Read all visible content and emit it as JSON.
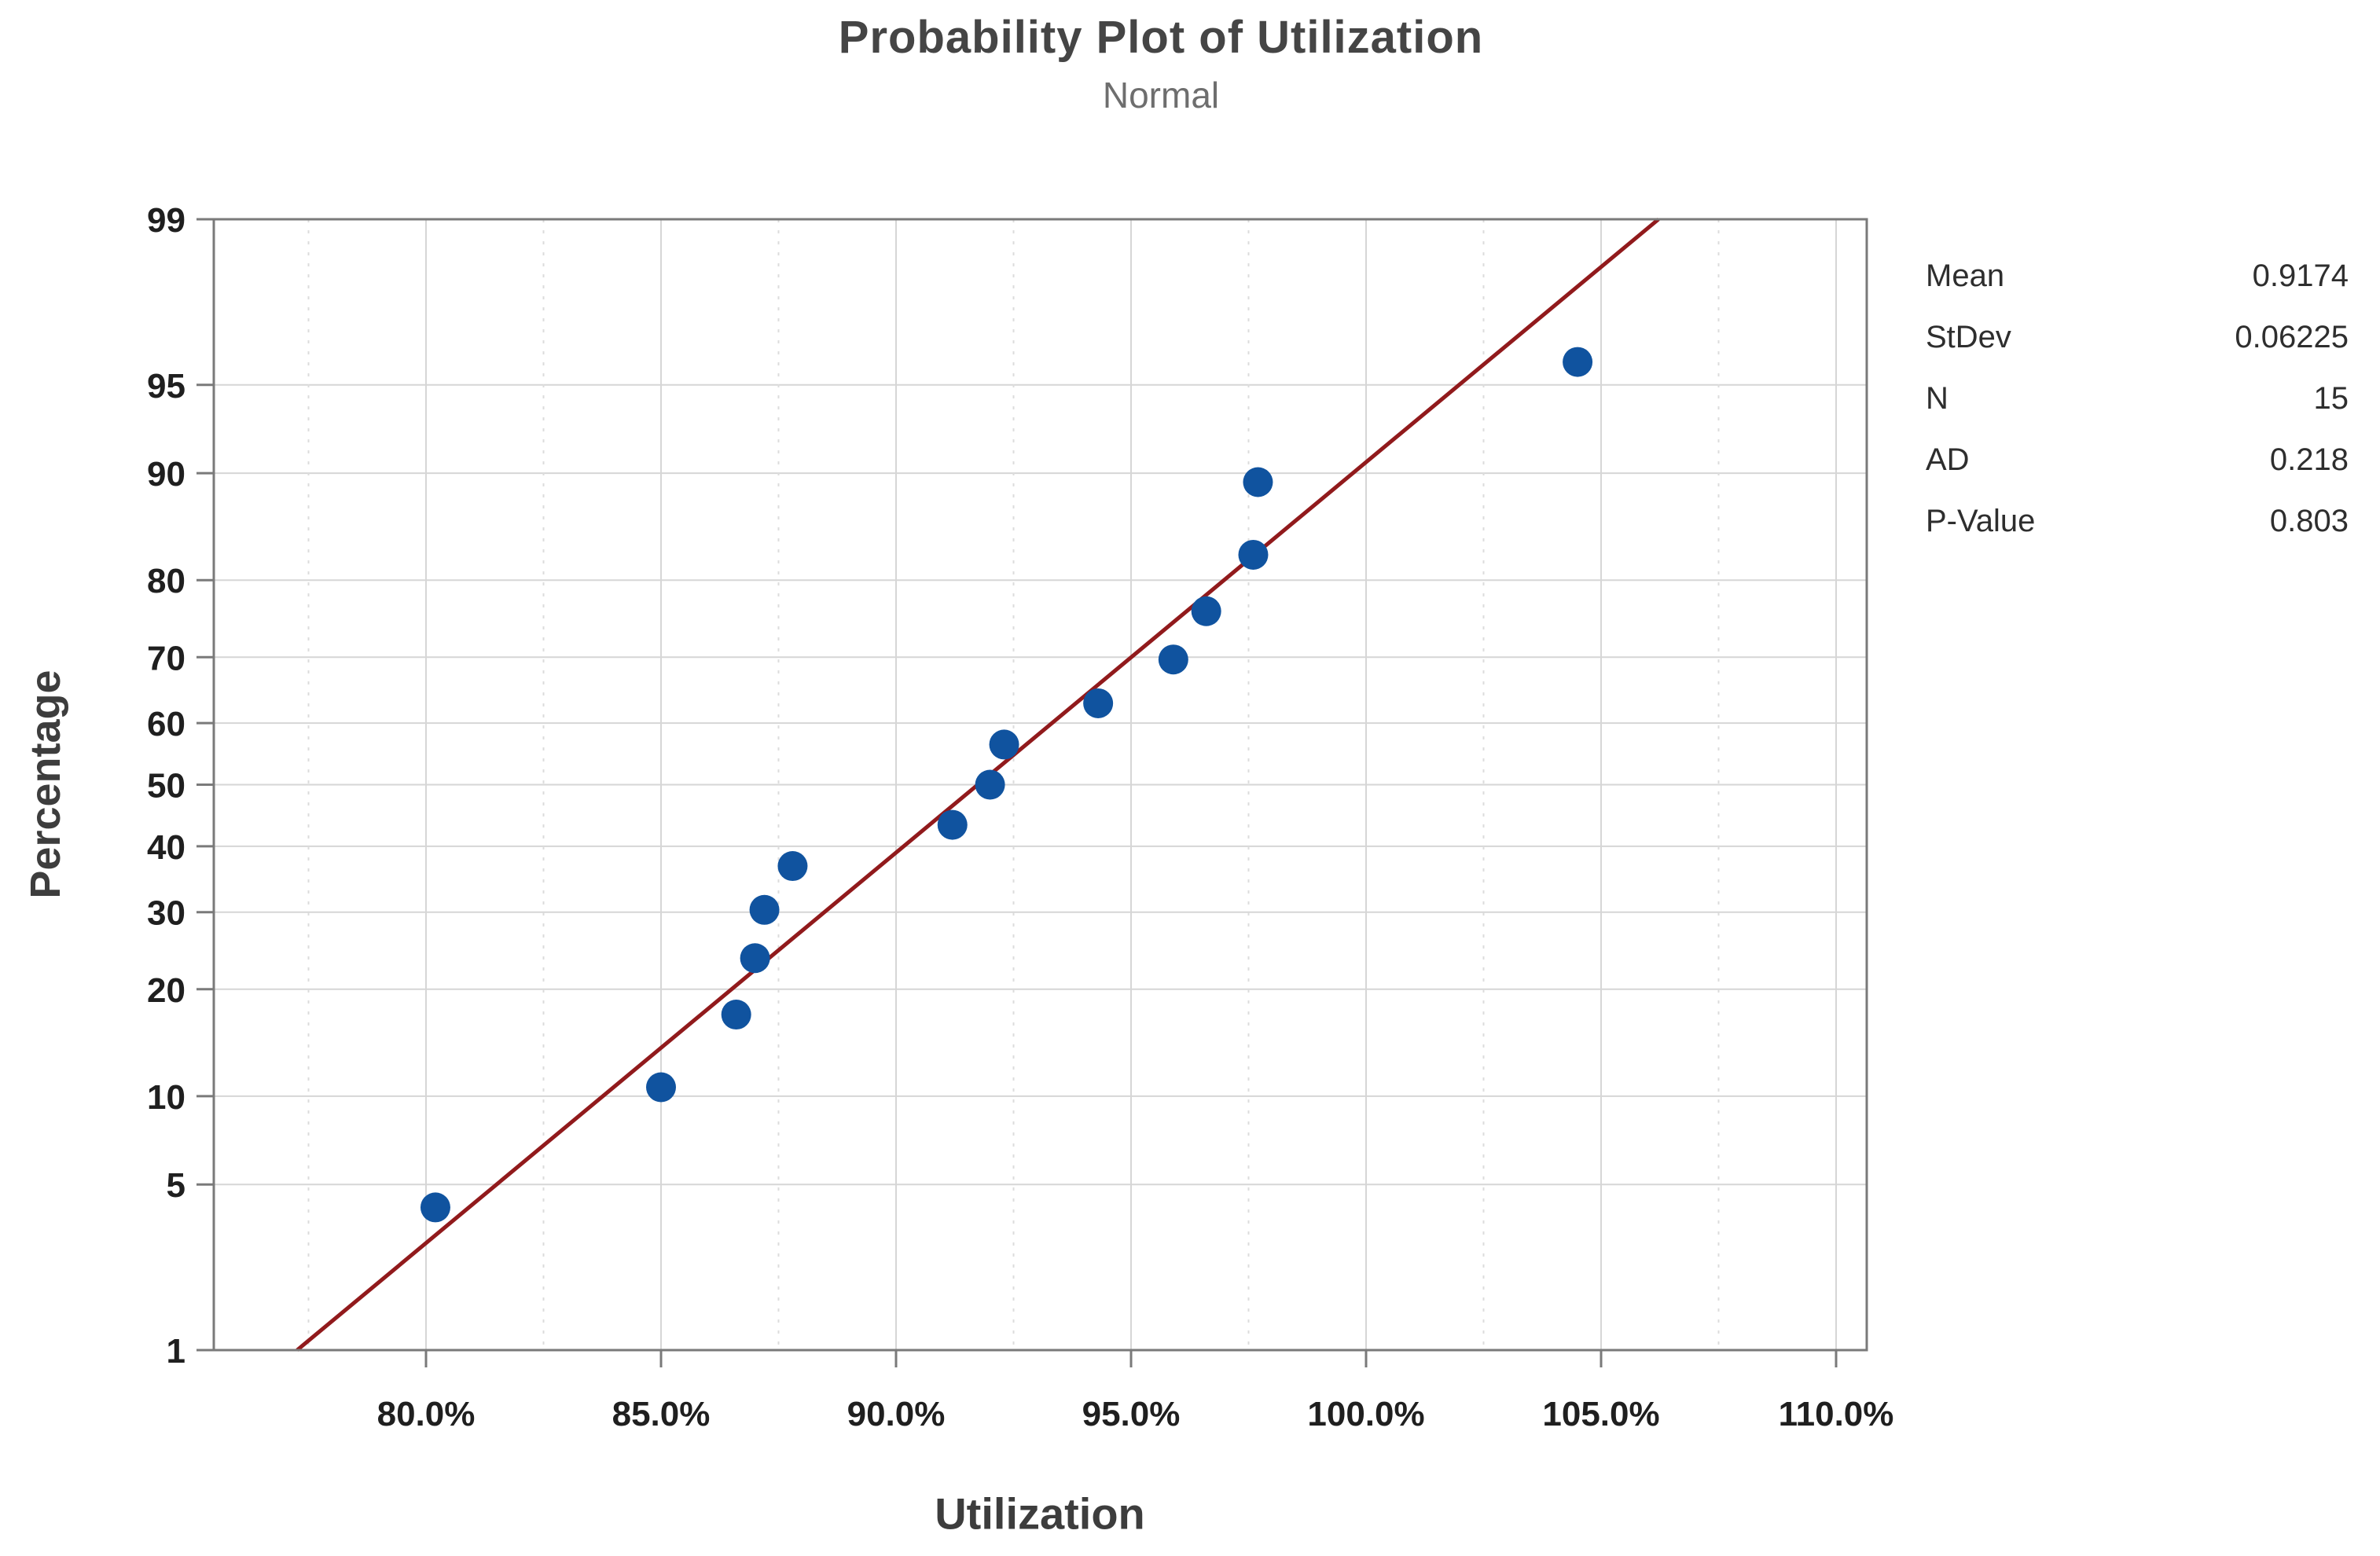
{
  "chart_data": {
    "type": "scatter",
    "variant": "normal-probability-plot",
    "title": "Probability Plot of Utilization",
    "subtitle": "Normal",
    "xlabel": "Utilization",
    "ylabel": "Percentage",
    "x_tick_labels": [
      "80.0%",
      "85.0%",
      "90.0%",
      "95.0%",
      "100.0%",
      "105.0%",
      "110.0%"
    ],
    "x_ticks_percent": [
      80,
      85,
      90,
      95,
      100,
      105,
      110
    ],
    "x_minor_gridlines_percent": [
      77.5,
      82.5,
      87.5,
      92.5,
      97.5,
      102.5,
      107.5
    ],
    "y_tick_labels": [
      "99",
      "95",
      "90",
      "80",
      "70",
      "60",
      "50",
      "40",
      "30",
      "20",
      "10",
      "5",
      "1"
    ],
    "y_ticks_percent": [
      99,
      95,
      90,
      80,
      70,
      60,
      50,
      40,
      30,
      20,
      10,
      5,
      1
    ],
    "y_scale": "normal-probability",
    "y_range_percent": [
      1,
      99
    ],
    "grid": true,
    "legend_position": "right",
    "points": [
      {
        "utilization": 0.802,
        "percent": 4.1
      },
      {
        "utilization": 0.85,
        "percent": 10.66
      },
      {
        "utilization": 0.866,
        "percent": 17.21
      },
      {
        "utilization": 0.87,
        "percent": 23.77
      },
      {
        "utilization": 0.872,
        "percent": 30.33
      },
      {
        "utilization": 0.878,
        "percent": 36.89
      },
      {
        "utilization": 0.912,
        "percent": 43.44
      },
      {
        "utilization": 0.92,
        "percent": 50.0
      },
      {
        "utilization": 0.923,
        "percent": 56.56
      },
      {
        "utilization": 0.943,
        "percent": 63.11
      },
      {
        "utilization": 0.959,
        "percent": 69.67
      },
      {
        "utilization": 0.966,
        "percent": 76.23
      },
      {
        "utilization": 0.976,
        "percent": 82.79
      },
      {
        "utilization": 0.977,
        "percent": 89.34
      },
      {
        "utilization": 1.045,
        "percent": 95.9
      }
    ],
    "fit_line": {
      "mean": 0.9174,
      "stdev": 0.06225,
      "p_from": 1,
      "p_to": 99
    },
    "colors": {
      "marker": "#10539f",
      "fit_line": "#911a1c",
      "grid_major": "#d6d6d6",
      "grid_minor": "#dcdcdc",
      "frame": "#7a7a7a",
      "tick_text": "#1f1f1f"
    }
  },
  "stats_panel": {
    "rows": [
      {
        "label": "Mean",
        "value": "0.9174"
      },
      {
        "label": "StDev",
        "value": "0.06225"
      },
      {
        "label": "N",
        "value": "15"
      },
      {
        "label": "AD",
        "value": "0.218"
      },
      {
        "label": "P-Value",
        "value": "0.803"
      }
    ]
  }
}
